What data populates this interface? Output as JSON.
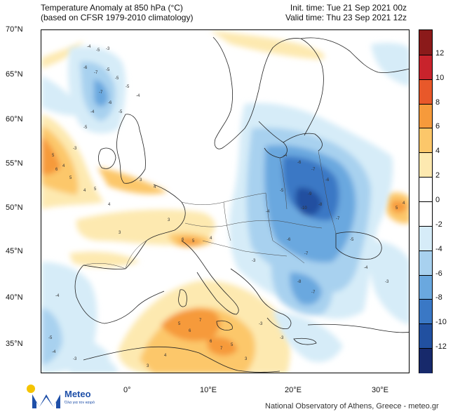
{
  "header": {
    "title_line1": "Temperature Anomaly at 850 hPa (°C)",
    "title_line2": "(based on CFSR 1979-2010 climatology)",
    "init_time": "Init. time: Tue 21 Sep 2021 00z",
    "valid_time": "Valid time: Thu 23 Sep 2021 12z"
  },
  "axes": {
    "latitudes": [
      "70°N",
      "65°N",
      "60°N",
      "55°N",
      "50°N",
      "45°N",
      "40°N",
      "35°N"
    ],
    "longitudes": [
      "0°",
      "10°E",
      "20°E",
      "30°E"
    ]
  },
  "colorbar": {
    "labels": [
      "12",
      "10",
      "8",
      "6",
      "4",
      "2",
      "0",
      "-2",
      "-4",
      "-6",
      "-8",
      "-10",
      "-12"
    ],
    "colors": [
      "#8b1a1a",
      "#c8232c",
      "#e8582a",
      "#f69a3b",
      "#fcc76a",
      "#fde9b0",
      "#ffffff",
      "#ffffff",
      "#d6ecf8",
      "#a8d1ef",
      "#6aa8df",
      "#3a78c5",
      "#2150a0",
      "#17296b"
    ]
  },
  "logo": {
    "name": "Meteo",
    "tagline": "Όλα για τον καιρό"
  },
  "credit": "National Observatory of Athens, Greece - meteo.gr",
  "contour_labels": [
    "-3",
    "-4",
    "-5",
    "-6",
    "-7",
    "-8",
    "-9",
    "-10",
    "3",
    "4",
    "5",
    "6",
    "7",
    "8"
  ]
}
